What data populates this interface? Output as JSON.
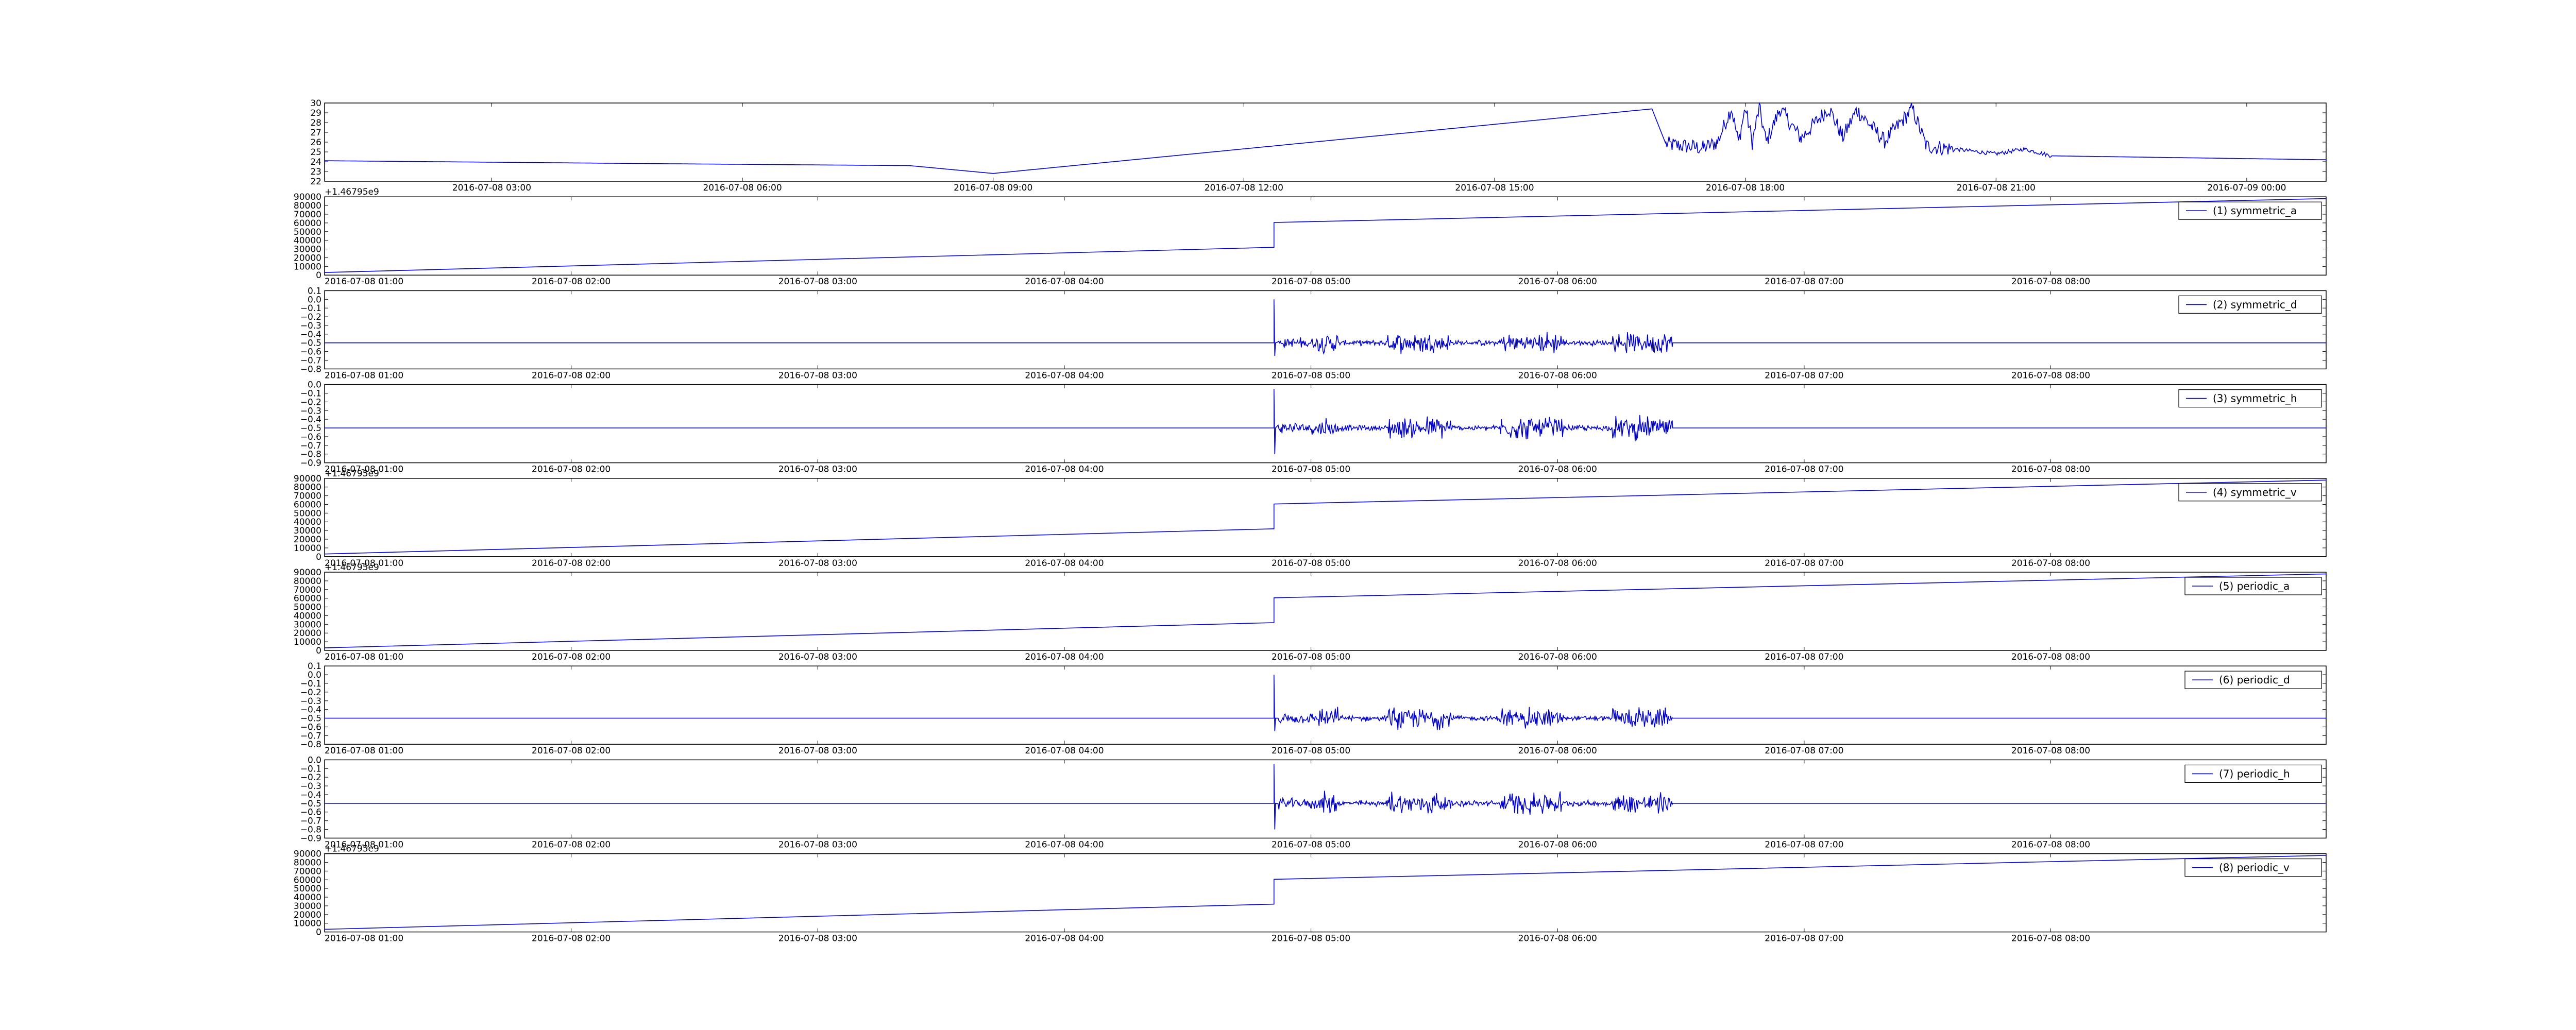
{
  "chart_data": [
    {
      "type": "line",
      "title": "",
      "xlabel": "",
      "ylabel": "",
      "x_domain": [
        "2016-07-08 01:00",
        "2016-07-09 00:57"
      ],
      "xticks": [
        "2016-07-08 03:00",
        "2016-07-08 06:00",
        "2016-07-08 09:00",
        "2016-07-08 12:00",
        "2016-07-08 15:00",
        "2016-07-08 18:00",
        "2016-07-08 21:00",
        "2016-07-09 00:00"
      ],
      "ylim": [
        22,
        30
      ],
      "yticks": [
        "30",
        "29",
        "28",
        "27",
        "26",
        "25",
        "24",
        "23",
        "22"
      ],
      "offset_label": "",
      "series": [
        {
          "name": "",
          "points": [
            [
              "2016-07-08 01:00",
              24.1
            ],
            [
              "2016-07-08 05:00",
              23.8
            ],
            [
              "2016-07-08 08:00",
              23.6
            ],
            [
              "2016-07-08 09:00",
              22.8
            ],
            [
              "2016-07-08 16:53",
              29.4
            ],
            [
              "2016-07-08 17:03",
              25.8
            ],
            [
              "2016-07-08 17:30",
              25.4
            ],
            [
              "2016-07-08 17:40",
              26.0
            ],
            [
              "2016-07-08 17:50",
              29.5
            ],
            [
              "2016-07-08 17:55",
              26.0
            ],
            [
              "2016-07-08 18:00",
              29.5
            ],
            [
              "2016-07-08 18:05",
              26.0
            ],
            [
              "2016-07-08 18:10",
              29.5
            ],
            [
              "2016-07-08 18:15",
              26.0
            ],
            [
              "2016-07-08 18:25",
              29.4
            ],
            [
              "2016-07-08 18:40",
              26.4
            ],
            [
              "2016-07-08 19:00",
              29.5
            ],
            [
              "2016-07-08 19:10",
              26.5
            ],
            [
              "2016-07-08 19:20",
              29.3
            ],
            [
              "2016-07-08 19:40",
              26.1
            ],
            [
              "2016-07-08 20:00",
              29.4
            ],
            [
              "2016-07-08 20:10",
              25.6
            ],
            [
              "2016-07-08 20:30",
              25.3
            ],
            [
              "2016-07-08 21:00",
              24.8
            ],
            [
              "2016-07-08 21:20",
              25.3
            ],
            [
              "2016-07-08 21:40",
              24.6
            ],
            [
              "2016-07-09 00:57",
              24.2
            ]
          ]
        }
      ]
    },
    {
      "type": "line",
      "xlabel": "",
      "ylabel": "",
      "x_domain": [
        "2016-07-08 01:00",
        "2016-07-08 09:07"
      ],
      "xticks": [
        "2016-07-08 01:00",
        "2016-07-08 02:00",
        "2016-07-08 03:00",
        "2016-07-08 04:00",
        "2016-07-08 05:00",
        "2016-07-08 06:00",
        "2016-07-08 07:00",
        "2016-07-08 08:00"
      ],
      "ylim": [
        0,
        90000
      ],
      "yticks": [
        "90000",
        "80000",
        "70000",
        "60000",
        "50000",
        "40000",
        "30000",
        "20000",
        "10000",
        "0"
      ],
      "offset_label": "+1.46795e9",
      "series": [
        {
          "name": "(1) symmetric_a",
          "points": [
            [
              "2016-07-08 01:00",
              3000
            ],
            [
              "2016-07-08 04:51",
              32000
            ],
            [
              "2016-07-08 04:51",
              60500
            ],
            [
              "2016-07-08 09:07",
              88000
            ]
          ]
        }
      ]
    },
    {
      "type": "line",
      "xlabel": "",
      "ylabel": "",
      "x_domain": [
        "2016-07-08 01:00",
        "2016-07-08 09:07"
      ],
      "xticks": [
        "2016-07-08 01:00",
        "2016-07-08 02:00",
        "2016-07-08 03:00",
        "2016-07-08 04:00",
        "2016-07-08 05:00",
        "2016-07-08 06:00",
        "2016-07-08 07:00",
        "2016-07-08 08:00"
      ],
      "ylim": [
        -0.8,
        0.1
      ],
      "yticks": [
        "0.1",
        "0.0",
        "−0.1",
        "−0.2",
        "−0.3",
        "−0.4",
        "−0.5",
        "−0.6",
        "−0.7",
        "−0.8"
      ],
      "offset_label": "",
      "series": [
        {
          "name": "(2) symmetric_d",
          "baseline": -0.5,
          "spike": {
            "time": "2016-07-08 04:51",
            "max": 0.0,
            "min": -0.65
          },
          "noise": {
            "start": "2016-07-08 04:52",
            "end": "2016-07-08 06:28",
            "amplitude": 0.12
          }
        }
      ]
    },
    {
      "type": "line",
      "xlabel": "",
      "ylabel": "",
      "x_domain": [
        "2016-07-08 01:00",
        "2016-07-08 09:07"
      ],
      "xticks": [
        "2016-07-08 01:00",
        "2016-07-08 02:00",
        "2016-07-08 03:00",
        "2016-07-08 04:00",
        "2016-07-08 05:00",
        "2016-07-08 06:00",
        "2016-07-08 07:00",
        "2016-07-08 08:00"
      ],
      "ylim": [
        -0.9,
        0.0
      ],
      "yticks": [
        "0.0",
        "−0.1",
        "−0.2",
        "−0.3",
        "−0.4",
        "−0.5",
        "−0.6",
        "−0.7",
        "−0.8",
        "−0.9"
      ],
      "offset_label": "",
      "series": [
        {
          "name": "(3) symmetric_h",
          "baseline": -0.5,
          "spike": {
            "time": "2016-07-08 04:51",
            "max": -0.05,
            "min": -0.8
          },
          "noise": {
            "start": "2016-07-08 04:52",
            "end": "2016-07-08 06:28",
            "amplitude": 0.13
          }
        }
      ]
    },
    {
      "type": "line",
      "xlabel": "",
      "ylabel": "",
      "x_domain": [
        "2016-07-08 01:00",
        "2016-07-08 09:07"
      ],
      "xticks": [
        "2016-07-08 01:00",
        "2016-07-08 02:00",
        "2016-07-08 03:00",
        "2016-07-08 04:00",
        "2016-07-08 05:00",
        "2016-07-08 06:00",
        "2016-07-08 07:00",
        "2016-07-08 08:00"
      ],
      "ylim": [
        0,
        90000
      ],
      "yticks": [
        "90000",
        "80000",
        "70000",
        "60000",
        "50000",
        "40000",
        "30000",
        "20000",
        "10000",
        "0"
      ],
      "offset_label": "+1.46795e9",
      "series": [
        {
          "name": "(4) symmetric_v",
          "points": [
            [
              "2016-07-08 01:00",
              3000
            ],
            [
              "2016-07-08 04:51",
              32000
            ],
            [
              "2016-07-08 04:51",
              60500
            ],
            [
              "2016-07-08 09:07",
              88000
            ]
          ]
        }
      ]
    },
    {
      "type": "line",
      "xlabel": "",
      "ylabel": "",
      "x_domain": [
        "2016-07-08 01:00",
        "2016-07-08 09:07"
      ],
      "xticks": [
        "2016-07-08 01:00",
        "2016-07-08 02:00",
        "2016-07-08 03:00",
        "2016-07-08 04:00",
        "2016-07-08 05:00",
        "2016-07-08 06:00",
        "2016-07-08 07:00",
        "2016-07-08 08:00"
      ],
      "ylim": [
        0,
        90000
      ],
      "yticks": [
        "90000",
        "80000",
        "70000",
        "60000",
        "50000",
        "40000",
        "30000",
        "20000",
        "10000",
        "0"
      ],
      "offset_label": "+1.46795e9",
      "series": [
        {
          "name": "(5) periodic_a",
          "points": [
            [
              "2016-07-08 01:00",
              3000
            ],
            [
              "2016-07-08 04:51",
              32000
            ],
            [
              "2016-07-08 04:51",
              60500
            ],
            [
              "2016-07-08 09:07",
              88000
            ]
          ]
        }
      ]
    },
    {
      "type": "line",
      "xlabel": "",
      "ylabel": "",
      "x_domain": [
        "2016-07-08 01:00",
        "2016-07-08 09:07"
      ],
      "xticks": [
        "2016-07-08 01:00",
        "2016-07-08 02:00",
        "2016-07-08 03:00",
        "2016-07-08 04:00",
        "2016-07-08 05:00",
        "2016-07-08 06:00",
        "2016-07-08 07:00",
        "2016-07-08 08:00"
      ],
      "ylim": [
        -0.8,
        0.1
      ],
      "yticks": [
        "0.1",
        "0.0",
        "−0.1",
        "−0.2",
        "−0.3",
        "−0.4",
        "−0.5",
        "−0.6",
        "−0.7",
        "−0.8"
      ],
      "offset_label": "",
      "series": [
        {
          "name": "(6) periodic_d",
          "baseline": -0.5,
          "spike": {
            "time": "2016-07-08 04:51",
            "max": 0.0,
            "min": -0.65
          },
          "noise": {
            "start": "2016-07-08 04:52",
            "end": "2016-07-08 06:28",
            "amplitude": 0.12
          }
        }
      ]
    },
    {
      "type": "line",
      "xlabel": "",
      "ylabel": "",
      "x_domain": [
        "2016-07-08 01:00",
        "2016-07-08 09:07"
      ],
      "xticks": [
        "2016-07-08 01:00",
        "2016-07-08 02:00",
        "2016-07-08 03:00",
        "2016-07-08 04:00",
        "2016-07-08 05:00",
        "2016-07-08 06:00",
        "2016-07-08 07:00",
        "2016-07-08 08:00"
      ],
      "ylim": [
        -0.9,
        0.0
      ],
      "yticks": [
        "0.0",
        "−0.1",
        "−0.2",
        "−0.3",
        "−0.4",
        "−0.5",
        "−0.6",
        "−0.7",
        "−0.8",
        "−0.9"
      ],
      "offset_label": "",
      "series": [
        {
          "name": "(7) periodic_h",
          "baseline": -0.5,
          "spike": {
            "time": "2016-07-08 04:51",
            "max": -0.05,
            "min": -0.8
          },
          "noise": {
            "start": "2016-07-08 04:52",
            "end": "2016-07-08 06:28",
            "amplitude": 0.13
          }
        }
      ]
    },
    {
      "type": "line",
      "xlabel": "",
      "ylabel": "",
      "x_domain": [
        "2016-07-08 01:00",
        "2016-07-08 09:07"
      ],
      "xticks": [
        "2016-07-08 01:00",
        "2016-07-08 02:00",
        "2016-07-08 03:00",
        "2016-07-08 04:00",
        "2016-07-08 05:00",
        "2016-07-08 06:00",
        "2016-07-08 07:00",
        "2016-07-08 08:00"
      ],
      "ylim": [
        0,
        90000
      ],
      "yticks": [
        "90000",
        "80000",
        "70000",
        "60000",
        "50000",
        "40000",
        "30000",
        "20000",
        "10000",
        "0"
      ],
      "offset_label": "+1.46795e9",
      "series": [
        {
          "name": "(8) periodic_v",
          "points": [
            [
              "2016-07-08 01:00",
              3000
            ],
            [
              "2016-07-08 04:51",
              32000
            ],
            [
              "2016-07-08 04:51",
              60500
            ],
            [
              "2016-07-08 09:07",
              88000
            ]
          ]
        }
      ]
    }
  ],
  "colors": {
    "line": "#0000cc",
    "axes": "#000000",
    "background": "#ffffff"
  }
}
